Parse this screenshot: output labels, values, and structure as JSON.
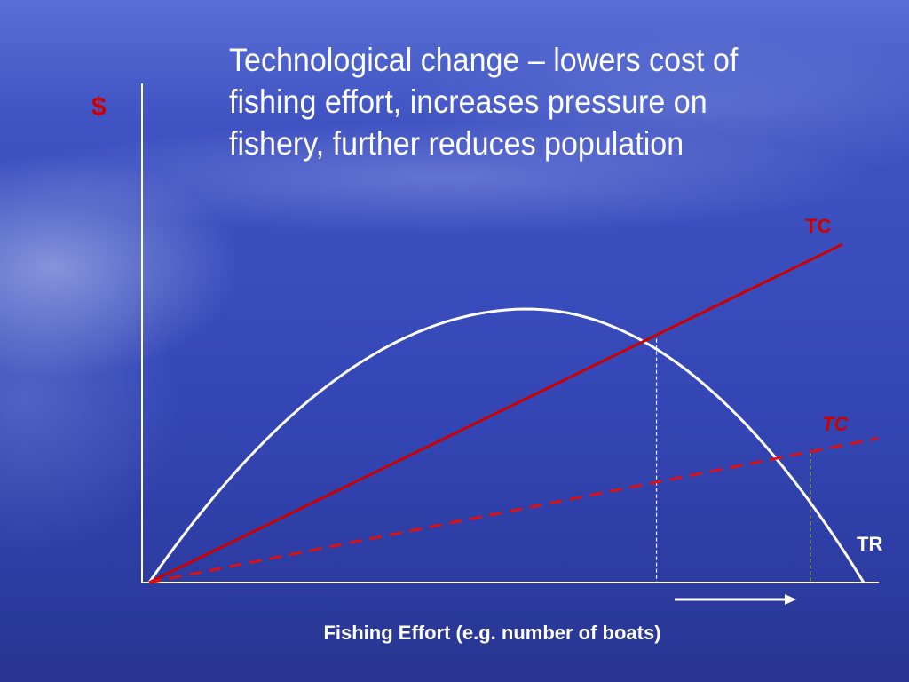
{
  "slide": {
    "heading": "Technological change – lowers cost of fishing effort, increases pressure on fishery, further reduces population"
  },
  "chart_data": {
    "type": "line",
    "ylabel": "$",
    "xlabel": "Fishing Effort (e.g. number of boats)",
    "xlim": [
      0,
      1
    ],
    "ylim": [
      0,
      1
    ],
    "series": [
      {
        "name": "TR",
        "curve": "parabola",
        "x": [
          0,
          0.53,
          1.0
        ],
        "y": [
          0,
          0.55,
          0
        ]
      },
      {
        "name": "TC",
        "style": "solid",
        "color": "#cc0000",
        "x": [
          0,
          0.97
        ],
        "y": [
          0,
          0.68
        ]
      },
      {
        "name": "TC",
        "style": "dashed",
        "italic": true,
        "color": "#dd1111",
        "x": [
          0,
          1.02
        ],
        "y": [
          0,
          0.29
        ]
      }
    ],
    "equilibria": [
      {
        "x": 0.71,
        "y": 0.49,
        "marker": "dotted-vertical"
      },
      {
        "x": 0.925,
        "y": 0.26,
        "marker": "dotted-vertical"
      }
    ],
    "annotations": {
      "arrow": "right"
    }
  }
}
